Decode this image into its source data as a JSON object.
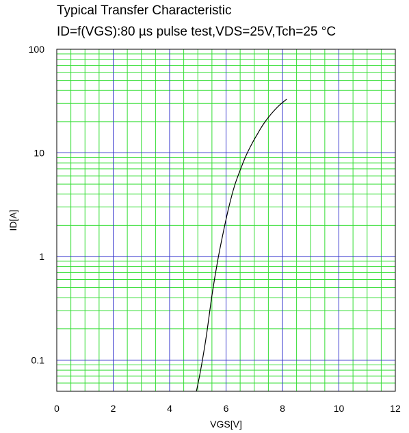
{
  "chart_data": {
    "type": "line",
    "title": "Typical Transfer Characteristic",
    "subtitle": "ID=f(VGS):80 µs pulse test,VDS=25V,Tch=25 °C",
    "xlabel": "VGS[V]",
    "ylabel": "ID[A]",
    "xlim": [
      0,
      12
    ],
    "ylim": [
      0.05,
      100
    ],
    "yscale": "log",
    "grid": true,
    "xticks": [
      "0",
      "2",
      "4",
      "6",
      "8",
      "10",
      "12"
    ],
    "yticks": [
      "0.1",
      "1",
      "10",
      "100"
    ],
    "series": [
      {
        "x": [
          4.95,
          5.1,
          5.3,
          5.5,
          5.7,
          5.9,
          6.1,
          6.3,
          6.5,
          6.7,
          6.9,
          7.1,
          7.3,
          7.5,
          7.7,
          7.9,
          8.15
        ],
        "y": [
          0.05,
          0.08,
          0.17,
          0.42,
          0.9,
          1.7,
          3.0,
          4.8,
          6.8,
          9.3,
          12.0,
          15.0,
          18.5,
          22.0,
          25.5,
          29.0,
          33.0
        ]
      }
    ]
  },
  "colors": {
    "major_grid": "#3333cc",
    "minor_grid": "#33dd33",
    "curve": "#000000"
  }
}
